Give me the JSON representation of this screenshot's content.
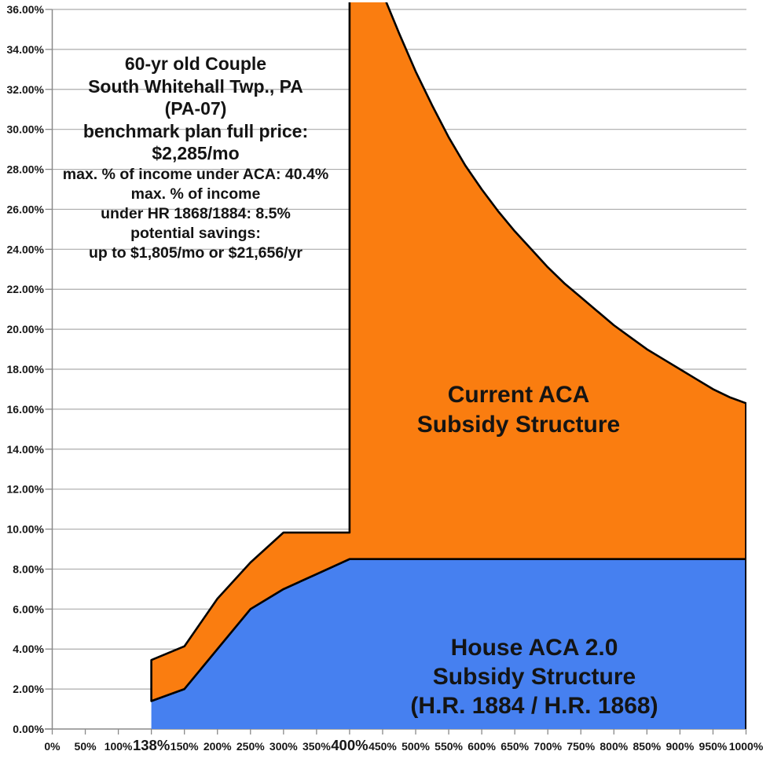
{
  "annotation": {
    "large": [
      "60-yr old Couple",
      "South Whitehall Twp., PA",
      "(PA-07)",
      "benchmark plan full price:",
      "$2,285/mo"
    ],
    "small": [
      "max. % of income under ACA: 40.4%",
      "max. % of income",
      "under HR 1868/1884: 8.5%",
      "potential savings:",
      "up to $1,805/mo or $21,656/yr"
    ]
  },
  "labels": {
    "aca": [
      "Current ACA",
      "Subsidy Structure"
    ],
    "house": [
      "House ACA 2.0",
      "Subsidy Structure",
      "(H.R. 1884 / H.R. 1868)"
    ]
  },
  "colors": {
    "aca_orange": "#FA7D10",
    "house_blue": "#4680F0",
    "outline": "#000000",
    "grid": "#ACACAC",
    "axis": "#8A8A8A",
    "text": "#141414"
  },
  "chart_data": {
    "type": "area",
    "title": "",
    "xlabel": "",
    "ylabel": "",
    "grid": true,
    "legend": "labels drawn inside areas",
    "y_range": [
      0,
      36
    ],
    "y_ticks": [
      "0.00%",
      "2.00%",
      "4.00%",
      "6.00%",
      "8.00%",
      "10.00%",
      "12.00%",
      "14.00%",
      "16.00%",
      "18.00%",
      "20.00%",
      "22.00%",
      "24.00%",
      "26.00%",
      "28.00%",
      "30.00%",
      "32.00%",
      "34.00%",
      "36.00%"
    ],
    "x_ticks": [
      {
        "label": "0%"
      },
      {
        "label": "50%"
      },
      {
        "label": "100%"
      },
      {
        "label": "138%",
        "emphasis": true
      },
      {
        "label": "150%"
      },
      {
        "label": "200%"
      },
      {
        "label": "250%"
      },
      {
        "label": "300%"
      },
      {
        "label": "350%"
      },
      {
        "label": "400%",
        "emphasis": true
      },
      {
        "label": "450%"
      },
      {
        "label": "500%"
      },
      {
        "label": "550%"
      },
      {
        "label": "600%"
      },
      {
        "label": "650%"
      },
      {
        "label": "700%"
      },
      {
        "label": "750%"
      },
      {
        "label": "800%"
      },
      {
        "label": "850%"
      },
      {
        "label": "900%"
      },
      {
        "label": "950%"
      },
      {
        "label": "1000%"
      }
    ],
    "series": [
      {
        "name": "Current ACA Subsidy Structure",
        "role": "upper-band",
        "points": [
          [
            138,
            3.45
          ],
          [
            150,
            4.14
          ],
          [
            200,
            6.52
          ],
          [
            250,
            8.33
          ],
          [
            300,
            9.83
          ],
          [
            350,
            9.83
          ],
          [
            400,
            9.83
          ],
          [
            400,
            40.4
          ],
          [
            425,
            39.0
          ],
          [
            450,
            36.8
          ],
          [
            475,
            34.8
          ],
          [
            500,
            32.9
          ],
          [
            525,
            31.2
          ],
          [
            550,
            29.6
          ],
          [
            575,
            28.2
          ],
          [
            600,
            27.0
          ],
          [
            625,
            25.9
          ],
          [
            650,
            24.9
          ],
          [
            675,
            24.0
          ],
          [
            700,
            23.1
          ],
          [
            725,
            22.3
          ],
          [
            750,
            21.6
          ],
          [
            775,
            20.9
          ],
          [
            800,
            20.2
          ],
          [
            825,
            19.6
          ],
          [
            850,
            19.0
          ],
          [
            875,
            18.5
          ],
          [
            900,
            18.0
          ],
          [
            925,
            17.5
          ],
          [
            950,
            17.0
          ],
          [
            975,
            16.6
          ],
          [
            1000,
            16.3
          ]
        ]
      },
      {
        "name": "House ACA 2.0 Subsidy Structure (H.R. 1884 / H.R. 1868)",
        "role": "lower-band",
        "points": [
          [
            138,
            1.4
          ],
          [
            150,
            2.0
          ],
          [
            200,
            4.0
          ],
          [
            250,
            6.0
          ],
          [
            300,
            7.0
          ],
          [
            350,
            7.75
          ],
          [
            400,
            8.5
          ],
          [
            1000,
            8.5
          ]
        ]
      }
    ]
  }
}
